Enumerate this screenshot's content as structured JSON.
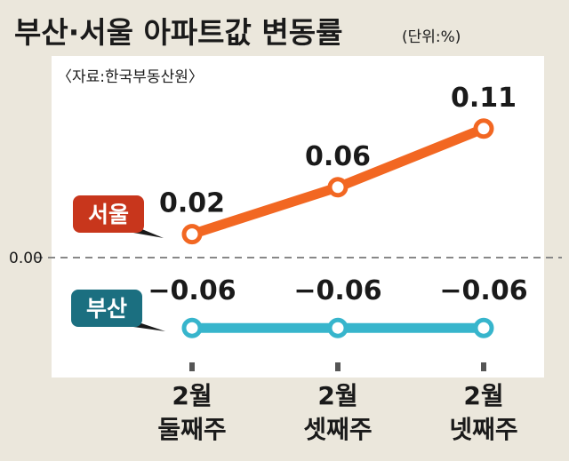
{
  "header": {
    "title": "부산·서울 아파트값 변동률",
    "unit": "(단위:%)",
    "source": "〈자료:한국부동산원〉"
  },
  "colors": {
    "background": "#ebe7dc",
    "panel": "#ffffff",
    "seoul": "#f26722",
    "seoul_badge": "#c8361c",
    "busan": "#37b5cc",
    "busan_badge": "#1b6f80",
    "zero_line": "#888888"
  },
  "chart_data": {
    "type": "line",
    "categories": [
      [
        "2월",
        "둘째주"
      ],
      [
        "2월",
        "셋째주"
      ],
      [
        "2월",
        "넷째주"
      ]
    ],
    "series": [
      {
        "name": "서울",
        "values": [
          0.02,
          0.06,
          0.11
        ],
        "labels": [
          "0.02",
          "0.06",
          "0.11"
        ]
      },
      {
        "name": "부산",
        "values": [
          -0.06,
          -0.06,
          -0.06
        ],
        "labels": [
          "−0.06",
          "−0.06",
          "−0.06"
        ]
      }
    ],
    "zero_label": "0.00",
    "grid": false,
    "legend": "inline"
  }
}
